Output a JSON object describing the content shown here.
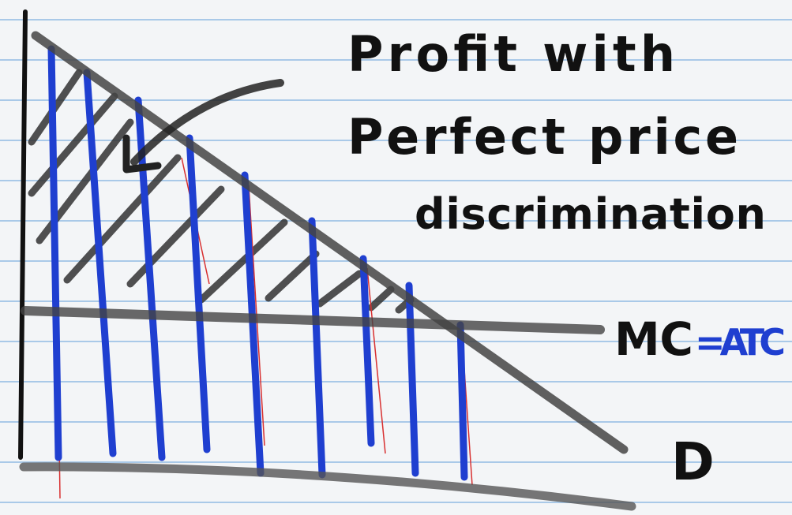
{
  "title": {
    "line1": "Profit with",
    "line2": "Perfect price",
    "line3": "discrimination"
  },
  "labels": {
    "mc": "MC",
    "atc": "=ATC",
    "demand": "D"
  }
}
